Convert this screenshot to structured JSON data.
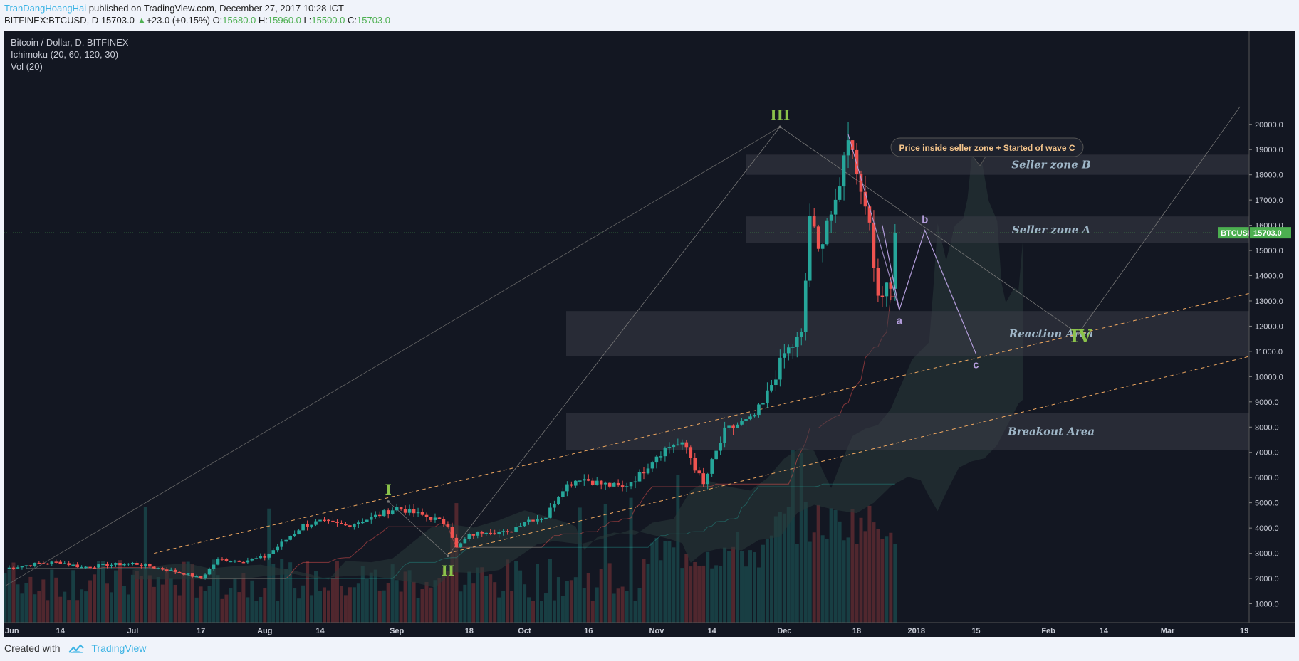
{
  "header": {
    "author": "TranDangHoangHai",
    "published": "published on TradingView.com, December 27, 2017 10:28 ICT",
    "symbol": "BITFINEX:BTCUSD, D",
    "last": "15703.0",
    "change_arrow": "▲",
    "change": "+23.0 (+0.15%)",
    "o_label": "O:",
    "o": "15680.0",
    "h_label": "H:",
    "h": "15960.0",
    "l_label": "L:",
    "l": "15500.0",
    "c_label": "C:",
    "c": "15703.0"
  },
  "legend": {
    "title": "Bitcoin / Dollar, D, BITFINEX",
    "indicator1": "Ichimoku (20, 60, 120, 30)",
    "indicator2": "Vol (20)"
  },
  "footer": {
    "created_with": "Created with",
    "brand": "TradingView"
  },
  "colors": {
    "background": "#131722",
    "up": "#26a69a",
    "down": "#ef5350",
    "zone_fill": "#3a3c47",
    "zone_label": "#9fb6c7",
    "wave_label": "#8bc34a",
    "abc_line": "#b39ddb",
    "channel": "#f0a860",
    "price_tag": "#4caf50"
  },
  "chart_data": {
    "type": "candlestick",
    "ylim": [
      800,
      21000
    ],
    "y_ticks": [
      "20000.0",
      "19000.0",
      "18000.0",
      "17000.0",
      "16000.0",
      "15000.0",
      "14000.0",
      "13000.0",
      "12000.0",
      "11000.0",
      "10000.0",
      "9000.0",
      "8000.0",
      "7000.0",
      "6000.0",
      "5000.0",
      "4000.0",
      "3000.0",
      "2000.0",
      "1000.0"
    ],
    "x_ticks": [
      {
        "label": "Jun",
        "day": 0
      },
      {
        "label": "14",
        "day": 13
      },
      {
        "label": "Jul",
        "day": 30
      },
      {
        "label": "17",
        "day": 46
      },
      {
        "label": "Aug",
        "day": 61
      },
      {
        "label": "14",
        "day": 74
      },
      {
        "label": "Sep",
        "day": 92
      },
      {
        "label": "18",
        "day": 109
      },
      {
        "label": "Oct",
        "day": 122
      },
      {
        "label": "16",
        "day": 137
      },
      {
        "label": "Nov",
        "day": 153
      },
      {
        "label": "14",
        "day": 166
      },
      {
        "label": "Dec",
        "day": 183
      },
      {
        "label": "18",
        "day": 200
      },
      {
        "label": "2018",
        "day": 214
      },
      {
        "label": "15",
        "day": 228
      },
      {
        "label": "Feb",
        "day": 245
      },
      {
        "label": "14",
        "day": 258
      },
      {
        "label": "Mar",
        "day": 273
      },
      {
        "label": "19",
        "day": 291
      }
    ],
    "price_anchors": [
      [
        0,
        2400
      ],
      [
        8,
        2600
      ],
      [
        13,
        2650
      ],
      [
        18,
        2450
      ],
      [
        25,
        2550
      ],
      [
        30,
        2600
      ],
      [
        38,
        2350
      ],
      [
        42,
        2200
      ],
      [
        46,
        2000
      ],
      [
        50,
        2750
      ],
      [
        56,
        2700
      ],
      [
        61,
        2850
      ],
      [
        65,
        3400
      ],
      [
        70,
        4100
      ],
      [
        74,
        4250
      ],
      [
        80,
        4100
      ],
      [
        86,
        4400
      ],
      [
        92,
        4800
      ],
      [
        96,
        4600
      ],
      [
        101,
        4350
      ],
      [
        104,
        4150
      ],
      [
        106,
        3200
      ],
      [
        109,
        3700
      ],
      [
        113,
        3900
      ],
      [
        118,
        3800
      ],
      [
        122,
        4300
      ],
      [
        127,
        4450
      ],
      [
        131,
        5600
      ],
      [
        135,
        6000
      ],
      [
        140,
        5750
      ],
      [
        145,
        5600
      ],
      [
        149,
        6100
      ],
      [
        153,
        6900
      ],
      [
        157,
        7350
      ],
      [
        160,
        7200
      ],
      [
        162,
        6400
      ],
      [
        164,
        5700
      ],
      [
        166,
        6600
      ],
      [
        169,
        7800
      ],
      [
        172,
        8100
      ],
      [
        175,
        8250
      ],
      [
        178,
        8900
      ],
      [
        180,
        9700
      ],
      [
        183,
        10900
      ],
      [
        187,
        11600
      ],
      [
        188,
        13800
      ],
      [
        189,
        16400
      ],
      [
        191,
        14900
      ],
      [
        193,
        16300
      ],
      [
        195,
        16600
      ],
      [
        196,
        17400
      ],
      [
        197,
        19100
      ],
      [
        199,
        19300
      ],
      [
        201,
        17300
      ],
      [
        203,
        16500
      ],
      [
        204,
        14000
      ],
      [
        205,
        13200
      ],
      [
        207,
        13800
      ],
      [
        208,
        13700
      ],
      [
        209,
        15703
      ]
    ],
    "annotations": [
      {
        "text": "Seller zone B",
        "y1": 18000,
        "y2": 18800
      },
      {
        "text": "Seller zone A",
        "y1": 15300,
        "y2": 16350
      },
      {
        "text": "Reaction Area",
        "y1": 10800,
        "y2": 12600
      },
      {
        "text": "Breakout Area",
        "y1": 7100,
        "y2": 8550
      }
    ],
    "callout": "Price inside seller zone + Started of wave C",
    "waves": [
      {
        "label": "I",
        "day": 90,
        "price": 5050
      },
      {
        "label": "II",
        "day": 104,
        "price": 2900
      },
      {
        "label": "III",
        "day": 182,
        "price": 19900
      },
      {
        "label": "IV",
        "day": 252,
        "price": 11700
      }
    ],
    "abc": [
      {
        "label": "a",
        "day": 210,
        "price": 12650
      },
      {
        "label": "b",
        "day": 216,
        "price": 15800
      },
      {
        "label": "c",
        "day": 228,
        "price": 10900
      }
    ],
    "price_tag": {
      "label": "BTCUSD",
      "value": "15703.0",
      "price": 15703
    }
  }
}
